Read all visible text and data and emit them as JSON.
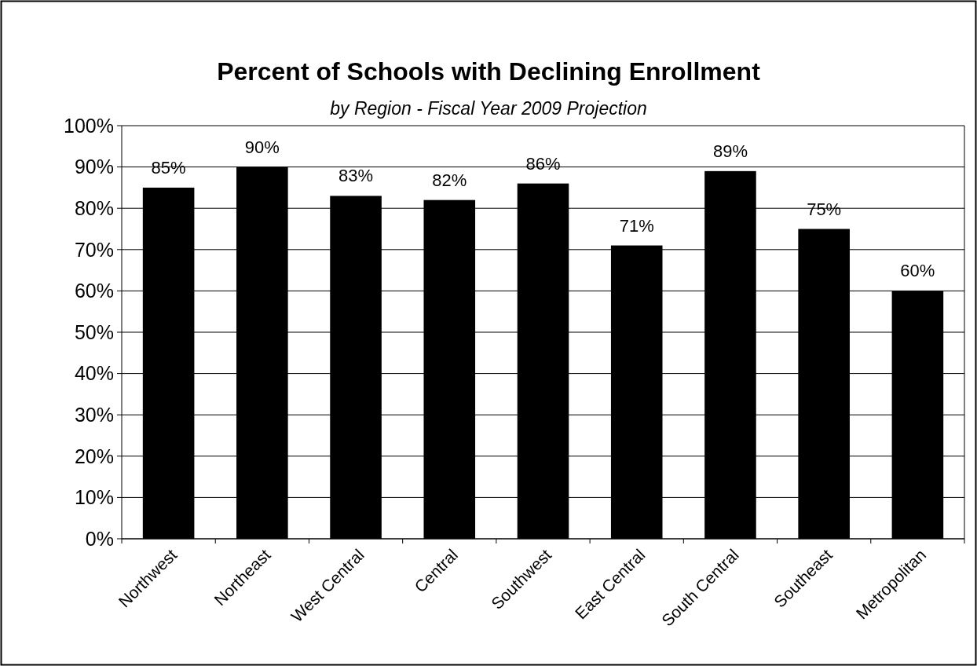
{
  "chart_data": {
    "type": "bar",
    "title": "Percent of Schools with Declining Enrollment",
    "subtitle": "by Region - Fiscal Year 2009 Projection",
    "categories": [
      "Northwest",
      "Northeast",
      "West Central",
      "Central",
      "Southwest",
      "East Central",
      "South Central",
      "Southeast",
      "Metropolitan"
    ],
    "values": [
      85,
      90,
      83,
      82,
      86,
      71,
      89,
      75,
      60
    ],
    "color": "#000000",
    "data_labels": true,
    "value_labels": [
      "85%",
      "90%",
      "83%",
      "82%",
      "86%",
      "71%",
      "89%",
      "75%",
      "60%"
    ],
    "ylim": [
      0,
      100
    ],
    "yticks": [
      {
        "value": 0,
        "label": "0%"
      },
      {
        "value": 10,
        "label": "10%"
      },
      {
        "value": 20,
        "label": "20%"
      },
      {
        "value": 30,
        "label": "30%"
      },
      {
        "value": 40,
        "label": "40%"
      },
      {
        "value": 50,
        "label": "50%"
      },
      {
        "value": 60,
        "label": "60%"
      },
      {
        "value": 70,
        "label": "70%"
      },
      {
        "value": 80,
        "label": "80%"
      },
      {
        "value": 90,
        "label": "90%"
      },
      {
        "value": 100,
        "label": "100%"
      }
    ],
    "grid": "y"
  }
}
